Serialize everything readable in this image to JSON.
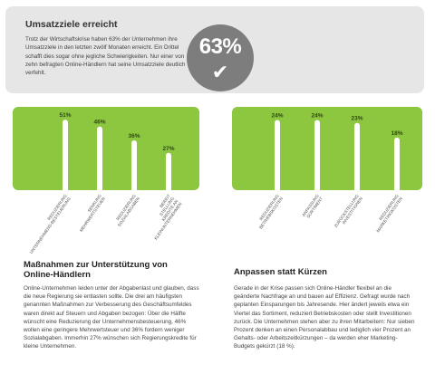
{
  "top": {
    "title": "Umsatzziele erreicht",
    "text": "Trotz der Wirtschaftskrise haben 63% der Unternehmen ihre Umsatzziele in den letzten zwölf Monaten erreicht. Ein Drittel schafft dies sogar ohne jegliche Schwierigkeiten. Nur einer von zehn befragten Online-Händlern hat seine Umsatzziele deutlich verfehlt.",
    "badge_value": "63%",
    "badge_icon": "check-icon"
  },
  "colors": {
    "panel_green": "#8dc63f",
    "bar_white": "#ffffff",
    "badge_gray": "#7d7d7d"
  },
  "chart_data": [
    {
      "type": "bar",
      "categories": [
        "REDUZIERUNG UNTERNEHMENS-BESTEUERUNG",
        "SENKUNG MEHRWERTSTEUER",
        "REDUZIERUNG SOZIALABGABEN",
        "BEREIT STELLUNG KREDITE AN KLEINUNTERNEHMEN"
      ],
      "values": [
        51,
        46,
        36,
        27
      ],
      "value_labels": [
        "51%",
        "46%",
        "36%",
        "27%"
      ],
      "ylim": [
        0,
        55
      ]
    },
    {
      "type": "bar",
      "categories": [
        "REDUZIERUNG BETRIEBSKOSTEN",
        "ANPASSUNG SORTIMENT",
        "ZURÜCKSTELLUNG INVESTITIONEN",
        "REDUZIERUNG MARKETINGKOSTEN"
      ],
      "values": [
        24,
        24,
        23,
        18
      ],
      "value_labels": [
        "24%",
        "24%",
        "23%",
        "18%"
      ],
      "ylim": [
        0,
        26
      ]
    }
  ],
  "left_section": {
    "title": "Maßnahmen zur Unterstützung von Online-Händlern",
    "text": "Online-Unternehmen leiden unter der Abgabenlast und glauben, dass die neue Regierung sie entlasten sollte. Die drei am häufigsten genannten Maßnahmen zur Verbesserung des Geschäftsumfeldes waren direkt auf Steuern und Abgaben bezogen: Über die Hälfte wünscht eine Reduzierung der Unternehmensbesteuerung, 46% wollen eine geringere Mehrwertsteuer und 36% fordern weniger Sozialabgaben. Immerhin 27% wünschen sich Regierungskredite für kleine Unternehmen."
  },
  "right_section": {
    "title": "Anpassen statt Kürzen",
    "text": "Gerade in der Krise passen sich Online-Händler flexibel an die geänderte Nachfrage an und bauen auf Effizienz. Gefragt wurde nach geplanten Einsparungen bis Jahresende. Hier ändert jeweils etwa ein Viertel das Sortiment, reduziert Betriebskosten oder stellt Investitionen zurück. Die Unternehmen stehen aber zu ihren Mitarbeitern: Nur sieben Prozent denken an einen Personalabbau und lediglich vier Prozent an Gehalts- oder Arbeitszeitkürzungen – da werden eher Marketing-Budgets gekürzt (18 %)."
  }
}
